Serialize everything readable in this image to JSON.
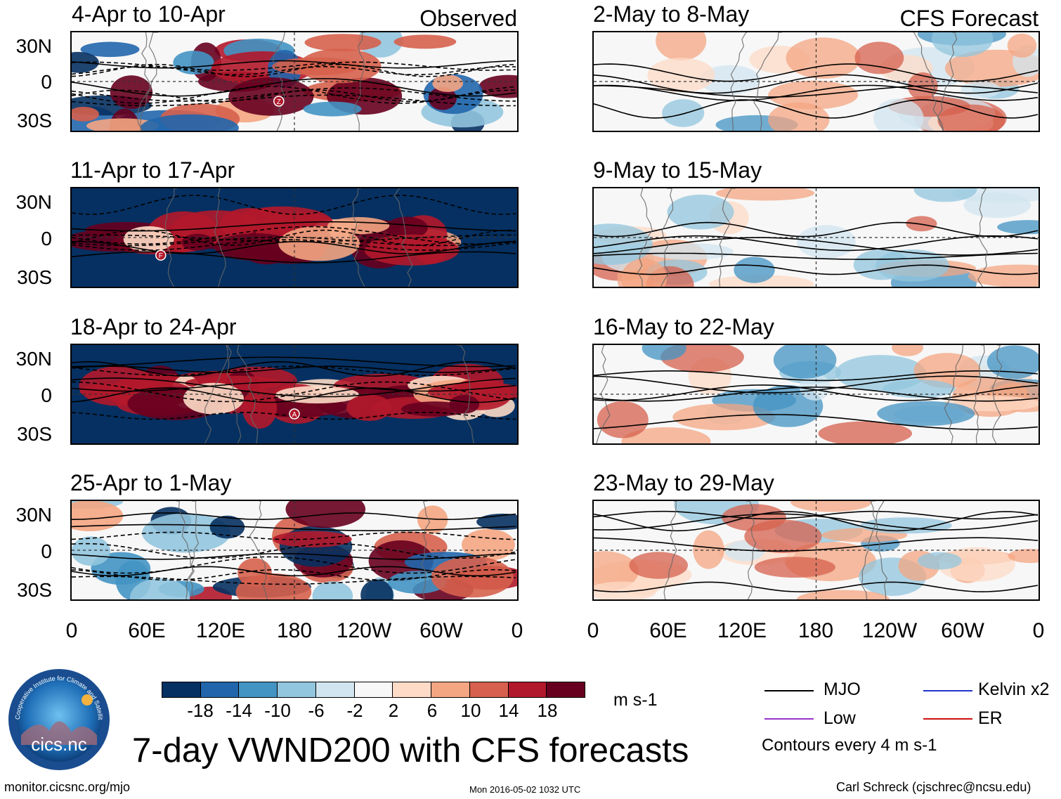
{
  "main_title": "7-day VWND200 with CFS forecasts",
  "observed_label": "Observed",
  "forecast_label": "CFS Forecast",
  "left_panels": [
    {
      "period": "4-Apr to 10-Apr",
      "style": "mixed",
      "marker": "Z"
    },
    {
      "period": "11-Apr to 17-Apr",
      "style": "dark",
      "marker": "F"
    },
    {
      "period": "18-Apr to 24-Apr",
      "style": "dark",
      "marker": "A"
    },
    {
      "period": "25-Apr to 1-May",
      "style": "mixed",
      "marker": ""
    }
  ],
  "right_panels": [
    {
      "period": "2-May to 8-May"
    },
    {
      "period": "9-May to 15-May"
    },
    {
      "period": "16-May to 22-May"
    },
    {
      "period": "23-May to 29-May"
    }
  ],
  "chart_data": {
    "type": "heatmap",
    "variable": "VWND200",
    "y_ticks": [
      "30N",
      "0",
      "30S"
    ],
    "x_ticks": [
      "0",
      "60E",
      "120E",
      "180",
      "120W",
      "60W",
      "0"
    ],
    "colorbar": {
      "ticks": [
        "-18",
        "-14",
        "-10",
        "-6",
        "-2",
        "2",
        "6",
        "10",
        "14",
        "18"
      ],
      "colors": [
        "#053061",
        "#2166ac",
        "#4393c3",
        "#92c5de",
        "#d1e5f0",
        "#f7f7f7",
        "#fddbc7",
        "#f4a582",
        "#d6604d",
        "#b2182b",
        "#67001f"
      ],
      "units": "m s-1"
    }
  },
  "legend": {
    "items": [
      {
        "label": "MJO",
        "color": "#000000"
      },
      {
        "label": "Kelvin x2",
        "color": "#2233cc"
      },
      {
        "label": "Low",
        "color": "#9933cc"
      },
      {
        "label": "ER",
        "color": "#cc1111"
      }
    ],
    "note": "Contours every 4 m s-1"
  },
  "logo_text": "cics.nc",
  "logo_ring_text": "Cooperative Institute for Climate and Satellites",
  "footer": {
    "url": "monitor.cicsnc.org/mjo",
    "timestamp": "Mon 2016-05-02 1032 UTC",
    "author": "Carl Schreck (cjschrec@ncsu.edu)"
  }
}
